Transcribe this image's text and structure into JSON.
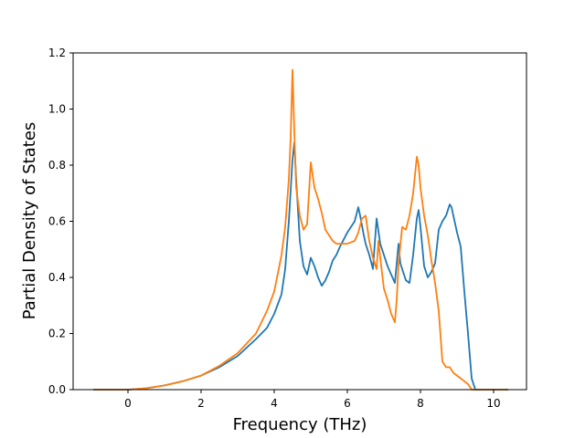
{
  "chart_data": {
    "type": "line",
    "title": "",
    "xlabel": "Frequency (THz)",
    "ylabel": "Partial Density of States",
    "xlim": [
      -1.5,
      10.9
    ],
    "ylim": [
      0,
      1.2
    ],
    "xticks": [
      0,
      2,
      4,
      6,
      8,
      10
    ],
    "yticks": [
      0.0,
      0.2,
      0.4,
      0.6,
      0.8,
      1.0,
      1.2
    ],
    "xtick_labels": [
      "0",
      "2",
      "4",
      "6",
      "8",
      "10"
    ],
    "ytick_labels": [
      "0.0",
      "0.2",
      "0.4",
      "0.6",
      "0.8",
      "1.0",
      "1.2"
    ],
    "grid": false,
    "legend": "none",
    "series": [
      {
        "color": "#1f77b4",
        "x": [
          -0.95,
          0,
          0.5,
          1.0,
          1.5,
          2.0,
          2.5,
          3.0,
          3.5,
          3.8,
          4.0,
          4.2,
          4.3,
          4.4,
          4.5,
          4.55,
          4.6,
          4.7,
          4.8,
          4.9,
          5.0,
          5.1,
          5.2,
          5.3,
          5.4,
          5.5,
          5.6,
          5.7,
          5.8,
          6.0,
          6.2,
          6.3,
          6.35,
          6.45,
          6.5,
          6.6,
          6.7,
          6.8,
          6.9,
          7.0,
          7.1,
          7.2,
          7.3,
          7.4,
          7.45,
          7.5,
          7.6,
          7.7,
          7.8,
          7.9,
          7.95,
          8.0,
          8.1,
          8.2,
          8.3,
          8.4,
          8.5,
          8.6,
          8.7,
          8.8,
          8.85,
          8.9,
          9.0,
          9.1,
          9.2,
          9.3,
          9.35,
          9.4,
          9.5,
          10.4
        ],
        "y": [
          0.0,
          0.0,
          0.005,
          0.015,
          0.03,
          0.05,
          0.08,
          0.12,
          0.18,
          0.22,
          0.27,
          0.34,
          0.43,
          0.6,
          0.82,
          0.88,
          0.75,
          0.53,
          0.44,
          0.41,
          0.47,
          0.44,
          0.4,
          0.37,
          0.39,
          0.42,
          0.46,
          0.48,
          0.51,
          0.56,
          0.6,
          0.65,
          0.62,
          0.55,
          0.52,
          0.48,
          0.43,
          0.61,
          0.52,
          0.48,
          0.44,
          0.41,
          0.38,
          0.52,
          0.45,
          0.43,
          0.39,
          0.38,
          0.48,
          0.61,
          0.64,
          0.58,
          0.44,
          0.4,
          0.42,
          0.45,
          0.57,
          0.6,
          0.62,
          0.66,
          0.65,
          0.62,
          0.56,
          0.51,
          0.35,
          0.2,
          0.12,
          0.04,
          0.0,
          0.0
        ]
      },
      {
        "color": "#ff7f0e",
        "x": [
          -0.95,
          0,
          0.5,
          1.0,
          1.5,
          2.0,
          2.5,
          3.0,
          3.5,
          3.8,
          4.0,
          4.2,
          4.3,
          4.4,
          4.45,
          4.5,
          4.55,
          4.6,
          4.7,
          4.8,
          4.9,
          5.0,
          5.1,
          5.2,
          5.3,
          5.4,
          5.5,
          5.6,
          5.7,
          5.8,
          6.0,
          6.2,
          6.3,
          6.4,
          6.5,
          6.6,
          6.7,
          6.8,
          6.85,
          6.9,
          7.0,
          7.1,
          7.2,
          7.3,
          7.35,
          7.4,
          7.5,
          7.6,
          7.7,
          7.8,
          7.9,
          7.95,
          8.0,
          8.1,
          8.2,
          8.3,
          8.4,
          8.5,
          8.6,
          8.7,
          8.8,
          8.9,
          9.0,
          9.1,
          9.2,
          9.3,
          9.35,
          9.4,
          9.5,
          10.4
        ],
        "y": [
          0.0,
          0.0,
          0.005,
          0.015,
          0.03,
          0.05,
          0.085,
          0.13,
          0.2,
          0.28,
          0.35,
          0.48,
          0.58,
          0.75,
          0.9,
          1.14,
          0.92,
          0.72,
          0.62,
          0.57,
          0.59,
          0.81,
          0.72,
          0.68,
          0.63,
          0.57,
          0.55,
          0.53,
          0.52,
          0.52,
          0.52,
          0.53,
          0.56,
          0.61,
          0.62,
          0.53,
          0.47,
          0.43,
          0.53,
          0.47,
          0.36,
          0.32,
          0.27,
          0.24,
          0.32,
          0.45,
          0.58,
          0.57,
          0.62,
          0.7,
          0.83,
          0.8,
          0.72,
          0.62,
          0.55,
          0.46,
          0.38,
          0.28,
          0.1,
          0.08,
          0.08,
          0.06,
          0.05,
          0.04,
          0.03,
          0.02,
          0.01,
          0.0,
          0.0,
          0.0
        ]
      }
    ]
  }
}
